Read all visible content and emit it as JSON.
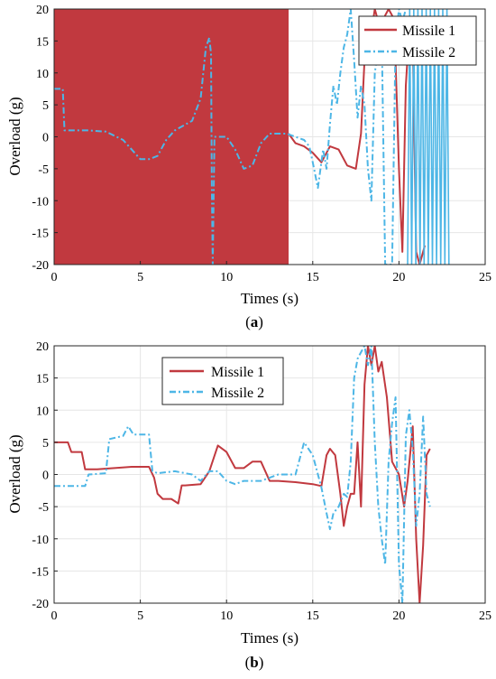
{
  "colors": {
    "missile1": "#C1393F",
    "missile2": "#4DB6E6",
    "grid": "#e6e6e6",
    "axis": "#262626"
  },
  "chart_data": [
    {
      "type": "line",
      "caption_paren_open": "(",
      "caption_letter": "a",
      "caption_paren_close": ")",
      "xlabel": "Times (s)",
      "ylabel": "Overload (g)",
      "xlim": [
        0,
        25
      ],
      "ylim": [
        -20,
        20
      ],
      "xticks": [
        0,
        5,
        10,
        15,
        20,
        25
      ],
      "yticks": [
        -20,
        -15,
        -10,
        -5,
        0,
        5,
        10,
        15,
        20
      ],
      "grid": true,
      "legend_position": "top-right",
      "series": [
        {
          "name": "Missile 1",
          "style": "solid",
          "saturated_oscillation": {
            "x_start": 0,
            "x_end": 13.6,
            "y_min": -20,
            "y_max": 20
          },
          "x": [
            13.6,
            14.0,
            14.5,
            15.0,
            15.5,
            16.0,
            16.5,
            17.0,
            17.5,
            17.8,
            18.0,
            18.3,
            18.6,
            18.9,
            19.2,
            19.4,
            19.6,
            19.8,
            20.0,
            20.2,
            20.4,
            20.6,
            20.8,
            21.0,
            21.2,
            21.5
          ],
          "y": [
            0.5,
            -1.0,
            -1.5,
            -2.5,
            -4.0,
            -1.5,
            -2.0,
            -4.5,
            -5.0,
            0.5,
            12.0,
            14.5,
            20.0,
            17.0,
            19.0,
            20.0,
            19.0,
            12.0,
            -5.0,
            -18.0,
            8.0,
            17.0,
            15.0,
            -18.0,
            -20.0,
            -17.0
          ]
        },
        {
          "name": "Missile 2",
          "style": "dash-dot",
          "x": [
            0,
            0.5,
            0.6,
            1.0,
            2.0,
            3.0,
            4.0,
            4.5,
            5.0,
            5.5,
            6.0,
            6.5,
            7.0,
            8.0,
            8.5,
            8.8,
            9.0,
            9.1,
            9.15,
            9.2,
            9.3,
            9.5,
            10.0,
            10.5,
            11.0,
            11.5,
            12.0,
            12.5,
            13.0,
            13.5,
            14.0,
            14.5,
            14.8,
            15.0,
            15.3,
            15.6,
            15.8,
            16.0,
            16.2,
            16.4,
            16.6,
            16.8,
            17.0,
            17.2,
            17.4,
            17.6,
            17.8,
            18.0,
            18.2,
            18.4,
            18.6,
            18.8,
            19.0,
            19.2,
            19.4,
            19.6,
            19.8,
            20.0,
            20.2,
            20.4
          ],
          "y": [
            7.5,
            7.5,
            1.0,
            1.0,
            1.0,
            0.8,
            -0.5,
            -2.0,
            -3.5,
            -3.5,
            -3.0,
            -0.5,
            1.0,
            2.5,
            6.0,
            14.0,
            15.5,
            13.0,
            -8.0,
            -20.0,
            0.0,
            0.0,
            0.0,
            -2.0,
            -5.0,
            -4.5,
            -1.0,
            0.5,
            0.5,
            0.5,
            0.0,
            -0.5,
            -1.5,
            -4.0,
            -8.0,
            -2.0,
            -5.0,
            2.0,
            8.0,
            5.0,
            10.0,
            14.0,
            16.0,
            20.0,
            12.0,
            3.0,
            8.0,
            5.0,
            -5.0,
            -10.0,
            10.0,
            14.0,
            16.0,
            -20.0,
            -20.0,
            -20.0,
            15.0,
            20.0,
            18.0,
            20.0
          ]
        }
      ],
      "missile2_tail_oscillation": {
        "x_start": 20.5,
        "x_end": 23.0,
        "y_min": -20,
        "y_max": 20
      }
    },
    {
      "type": "line",
      "caption_paren_open": "(",
      "caption_letter": "b",
      "caption_paren_close": ")",
      "xlabel": "Times (s)",
      "ylabel": "Overload (g)",
      "xlim": [
        0,
        25
      ],
      "ylim": [
        -20,
        20
      ],
      "xticks": [
        0,
        5,
        10,
        15,
        20,
        25
      ],
      "yticks": [
        -20,
        -15,
        -10,
        -5,
        0,
        5,
        10,
        15,
        20
      ],
      "grid": true,
      "legend_position": "top-center",
      "series": [
        {
          "name": "Missile 1",
          "style": "solid",
          "x": [
            0,
            0.8,
            1.0,
            1.6,
            1.8,
            2.5,
            3.5,
            4.5,
            5.5,
            5.8,
            6.0,
            6.3,
            6.8,
            7.2,
            7.4,
            7.6,
            8.5,
            9.0,
            9.5,
            10.0,
            10.5,
            11.0,
            11.5,
            12.0,
            12.5,
            13.0,
            14.0,
            15.0,
            15.5,
            15.8,
            16.0,
            16.3,
            16.6,
            16.8,
            17.0,
            17.2,
            17.4,
            17.6,
            17.8,
            18.0,
            18.2,
            18.4,
            18.6,
            18.8,
            19.0,
            19.3,
            19.6,
            20.0,
            20.3,
            20.5,
            20.8,
            21.0,
            21.2,
            21.4,
            21.6,
            21.8
          ],
          "y": [
            5.0,
            5.0,
            3.5,
            3.5,
            0.8,
            0.8,
            1.0,
            1.2,
            1.2,
            -0.5,
            -3.0,
            -3.8,
            -3.8,
            -4.5,
            -1.7,
            -1.7,
            -1.5,
            0.5,
            4.5,
            3.5,
            1.0,
            1.0,
            2.0,
            2.0,
            -1.0,
            -1.0,
            -1.2,
            -1.5,
            -1.8,
            3.0,
            4.0,
            3.0,
            -3.0,
            -8.0,
            -5.0,
            -3.0,
            -3.0,
            5.0,
            -5.0,
            14.0,
            20.0,
            17.0,
            20.0,
            16.0,
            17.5,
            12.0,
            2.0,
            0.0,
            -5.0,
            -1.0,
            7.5,
            -10.0,
            -20.0,
            -11.0,
            3.0,
            4.0
          ]
        },
        {
          "name": "Missile 2",
          "style": "dash-dot",
          "x": [
            0,
            1.0,
            1.8,
            2.0,
            3.0,
            3.2,
            4.0,
            4.3,
            4.6,
            5.5,
            5.7,
            6.0,
            7.0,
            8.0,
            8.5,
            9.0,
            9.5,
            10.0,
            10.5,
            11.0,
            12.0,
            13.0,
            14.0,
            14.5,
            15.0,
            15.5,
            15.8,
            16.0,
            16.2,
            16.5,
            16.8,
            17.0,
            17.2,
            17.4,
            17.6,
            17.8,
            18.0,
            18.2,
            18.4,
            18.6,
            18.8,
            19.0,
            19.2,
            19.4,
            19.6,
            19.8,
            20.0,
            20.2,
            20.4,
            20.6,
            20.8,
            21.0,
            21.2,
            21.4,
            21.6,
            21.8
          ],
          "y": [
            -1.8,
            -1.8,
            -1.8,
            0.0,
            0.2,
            5.5,
            6.0,
            7.5,
            6.2,
            6.2,
            0.5,
            0.2,
            0.5,
            0.0,
            -1.0,
            0.5,
            0.5,
            -1.0,
            -1.5,
            -1.0,
            -1.0,
            0.0,
            0.0,
            5.0,
            3.0,
            -2.0,
            -6.0,
            -8.5,
            -6.0,
            -5.0,
            -3.0,
            -3.5,
            2.0,
            15.0,
            18.0,
            19.0,
            20.0,
            17.0,
            20.0,
            5.0,
            -5.0,
            -10.0,
            -14.0,
            2.0,
            8.0,
            12.0,
            -14.0,
            -20.0,
            6.0,
            10.0,
            4.0,
            -8.0,
            -3.0,
            9.0,
            -3.0,
            -5.0
          ]
        }
      ]
    }
  ]
}
